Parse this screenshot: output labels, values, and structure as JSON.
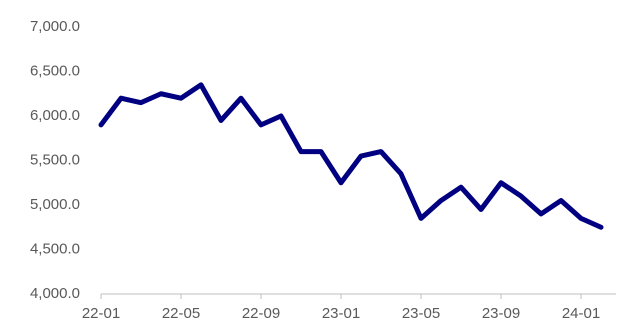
{
  "chart_data": {
    "type": "line",
    "categories": [
      "22-01",
      null,
      null,
      null,
      "22-05",
      null,
      null,
      null,
      "22-09",
      null,
      null,
      null,
      "23-01",
      null,
      null,
      null,
      "23-05",
      null,
      null,
      null,
      "23-09",
      null,
      null,
      null,
      "24-01",
      null
    ],
    "series": [
      {
        "color": "#000080",
        "values": [
          5900,
          6200,
          6150,
          6250,
          6200,
          6350,
          5950,
          6200,
          5900,
          6000,
          5600,
          5600,
          5250,
          5550,
          5600,
          5350,
          4850,
          5050,
          5200,
          4950,
          5250,
          5100,
          4900,
          5050,
          4850,
          4750
        ]
      }
    ],
    "ylim": [
      4000,
      7000
    ],
    "yticks": [
      {
        "value": 4000,
        "label": "4,000.0"
      },
      {
        "value": 4500,
        "label": "4,500.0"
      },
      {
        "value": 5000,
        "label": "5,000.0"
      },
      {
        "value": 5500,
        "label": "5,500.0"
      },
      {
        "value": 6000,
        "label": "6,000.0"
      },
      {
        "value": 6500,
        "label": "6,500.0"
      },
      {
        "value": 7000,
        "label": "7,000.0"
      }
    ],
    "grid": false
  }
}
